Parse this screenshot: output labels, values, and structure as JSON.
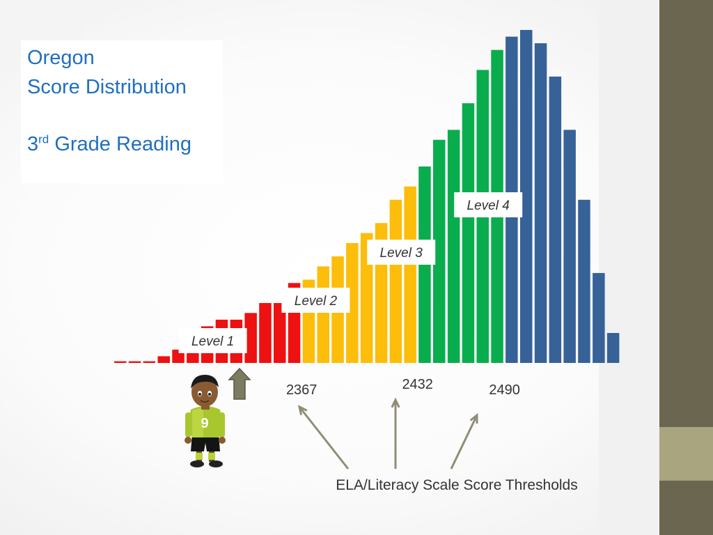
{
  "title": {
    "state": "Oregon",
    "subtitle": "Score Distribution",
    "grade_number": "3",
    "grade_suffix": "rd",
    "grade_text": " Grade Reading"
  },
  "chart_data": {
    "type": "bar",
    "title": "Oregon Score Distribution 3rd Grade Reading",
    "xlabel": "ELA/Literacy Scale Score Thresholds",
    "ylabel": "",
    "value_unit": "relative frequency (0-100, unlabeled axis)",
    "ylim": [
      0,
      100
    ],
    "colors": {
      "level1": "#ee1111",
      "level2": "#fcbd0b",
      "level3": "#0aad4d",
      "level4": "#366298",
      "arrow": "#8f8d76",
      "arrow_fill": "#7c7a60"
    },
    "series": [
      {
        "name": "Level 1",
        "color_key": "level1",
        "values": [
          0.5,
          0.5,
          0.5,
          2,
          4,
          7,
          11,
          13,
          13,
          15,
          18,
          18,
          24
        ]
      },
      {
        "name": "Level 2",
        "color_key": "level2",
        "values": [
          25,
          29,
          32,
          36,
          39,
          42,
          49,
          53
        ]
      },
      {
        "name": "Level 3",
        "color_key": "level3",
        "values": [
          59,
          67,
          70,
          78,
          88,
          94
        ]
      },
      {
        "name": "Level 4",
        "color_key": "level4",
        "values": [
          98,
          100,
          96,
          86,
          70,
          49,
          27,
          9
        ]
      }
    ],
    "level_labels": [
      "Level 1",
      "Level 2",
      "Level 3",
      "Level 4"
    ],
    "thresholds": [
      "2367",
      "2432",
      "2490"
    ],
    "threshold_caption": "ELA/Literacy Scale Score Thresholds"
  },
  "student": {
    "jersey_number": "9"
  }
}
